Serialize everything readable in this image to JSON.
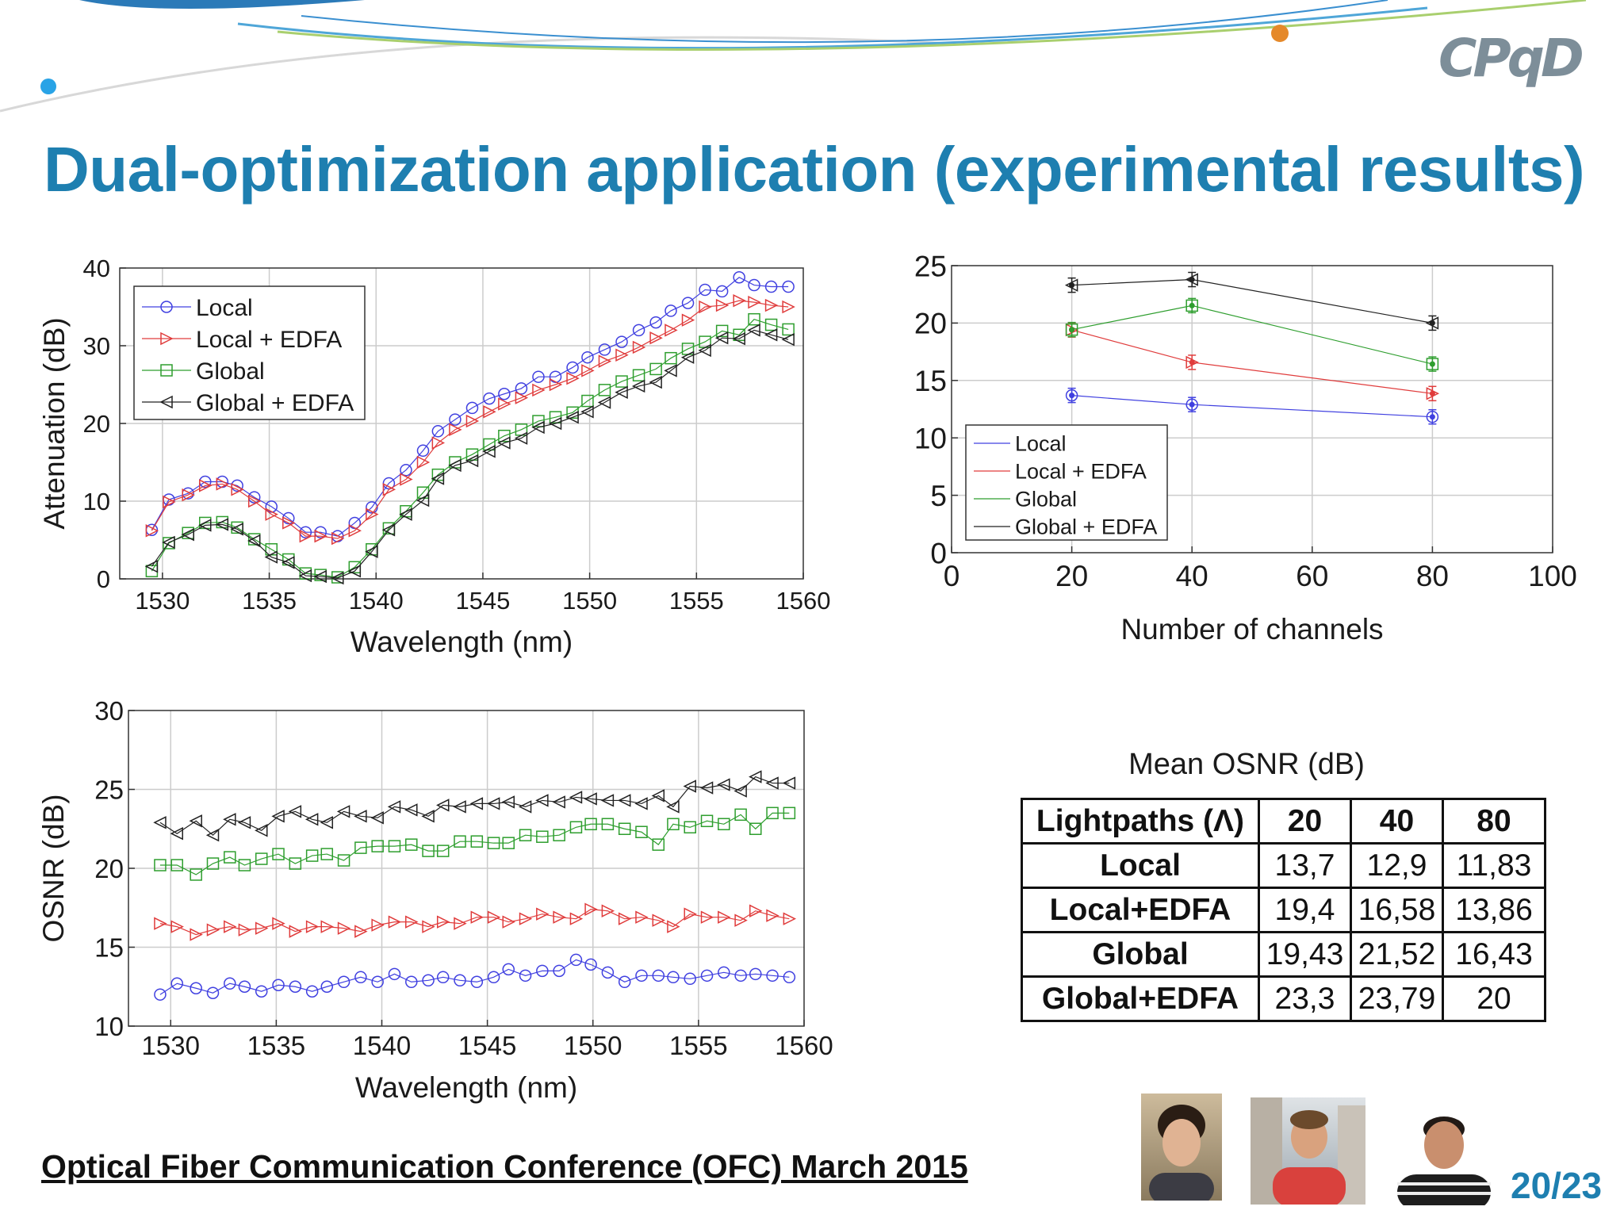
{
  "slide": {
    "title": "Dual-optimization application (experimental results)",
    "footer": "Optical Fiber Communication Conference (OFC) March 2015",
    "page_number": "20/23",
    "logo": "CPqD",
    "colors": {
      "title": "#1e7fb0",
      "local": "#4040e0",
      "local_edfa": "#e03c3c",
      "global": "#2e9e2e",
      "global_edfa": "#222222"
    }
  },
  "table": {
    "caption": "Mean OSNR (dB)",
    "header": [
      "Lightpaths (Λ)",
      "20",
      "40",
      "80"
    ],
    "rows": [
      [
        "Local",
        "13,7",
        "12,9",
        "11,83"
      ],
      [
        "Local+EDFA",
        "19,4",
        "16,58",
        "13,86"
      ],
      [
        "Global",
        "19,43",
        "21,52",
        "16,43"
      ],
      [
        "Global+EDFA",
        "23,3",
        "23,79",
        "20"
      ]
    ]
  },
  "chart_data": [
    {
      "id": "attenuation",
      "type": "line",
      "xlabel": "Wavelength (nm)",
      "ylabel": "Attenuation (dB)",
      "xlim": [
        1528,
        1560
      ],
      "ylim": [
        0,
        40
      ],
      "xticks": [
        1530,
        1535,
        1540,
        1545,
        1550,
        1555,
        1560
      ],
      "yticks": [
        0,
        10,
        20,
        30,
        40
      ],
      "grid": true,
      "legend": "top-left",
      "x": [
        1529.5,
        1530.3,
        1531.2,
        1532,
        1532.8,
        1533.5,
        1534.3,
        1535.1,
        1535.9,
        1536.7,
        1537.4,
        1538.2,
        1539,
        1539.8,
        1540.6,
        1541.4,
        1542.2,
        1542.9,
        1543.7,
        1544.5,
        1545.3,
        1546,
        1546.8,
        1547.6,
        1548.4,
        1549.2,
        1549.9,
        1550.7,
        1551.5,
        1552.3,
        1553.1,
        1553.8,
        1554.6,
        1555.4,
        1556.2,
        1557,
        1557.7,
        1558.5,
        1559.3
      ],
      "series": [
        {
          "name": "Local",
          "marker": "circle",
          "color": "#4040e0",
          "values": [
            6.3,
            10.2,
            11,
            12.5,
            12.5,
            12,
            10.5,
            9.3,
            7.8,
            6,
            6,
            5.5,
            7.2,
            9.2,
            12.3,
            14,
            16.5,
            19,
            20.5,
            22,
            23.2,
            23.8,
            24.5,
            26,
            26,
            27.2,
            28.5,
            29.5,
            30.5,
            32,
            33,
            34.5,
            35.5,
            37.2,
            37,
            38.8,
            37.8,
            37.6,
            37.6
          ]
        },
        {
          "name": "Local + EDFA",
          "marker": "triangle-right",
          "color": "#e03c3c",
          "values": [
            6.2,
            9.9,
            10.8,
            12,
            12.2,
            11.5,
            10,
            8.3,
            7.2,
            5.5,
            5.5,
            5.2,
            6.2,
            8.3,
            11.5,
            12.8,
            15,
            17.5,
            19.2,
            20.3,
            21.5,
            22.5,
            23.3,
            24.3,
            25,
            25.8,
            26.8,
            28,
            28.8,
            29.8,
            31,
            32,
            33.3,
            35,
            35.2,
            35.8,
            35.6,
            35.2,
            35
          ]
        },
        {
          "name": "Global",
          "marker": "square",
          "color": "#2e9e2e",
          "values": [
            1,
            4.6,
            5.9,
            7.2,
            7.3,
            6.6,
            5.1,
            3.8,
            2.5,
            0.7,
            0.5,
            0.2,
            1.5,
            3.8,
            6.5,
            8.7,
            11.1,
            13.4,
            15,
            16,
            17.3,
            18.4,
            19.2,
            20.3,
            20.8,
            21.4,
            22.9,
            24.3,
            25.4,
            26.2,
            27,
            28.4,
            29.6,
            30.5,
            31.9,
            31.4,
            33.4,
            32.7,
            32.1
          ]
        },
        {
          "name": "Global + EDFA",
          "marker": "triangle-left",
          "color": "#222222",
          "values": [
            1.6,
            4.7,
            5.7,
            6.9,
            7,
            6.4,
            4.9,
            2.8,
            2.1,
            0.4,
            0.3,
            0.1,
            1,
            3.5,
            6.3,
            8.3,
            10.1,
            12.9,
            14.6,
            15.2,
            16.4,
            17.5,
            18.1,
            19.5,
            20,
            20.8,
            21.5,
            22.7,
            24,
            24.8,
            25.3,
            26.8,
            28.5,
            29.4,
            31,
            30.9,
            32,
            31.4,
            30.8
          ]
        }
      ]
    },
    {
      "id": "osnr-vs-channels",
      "type": "line",
      "xlabel": "Number of channels",
      "ylabel": "",
      "xlim": [
        0,
        100
      ],
      "ylim": [
        0,
        25
      ],
      "xticks": [
        0,
        20,
        40,
        60,
        80,
        100
      ],
      "yticks": [
        0,
        5,
        10,
        15,
        20,
        25
      ],
      "grid": true,
      "legend": "bottom-left",
      "x": [
        20,
        40,
        80
      ],
      "series": [
        {
          "name": "Local",
          "marker": "circle",
          "color": "#4040e0",
          "values": [
            13.7,
            12.9,
            11.83
          ]
        },
        {
          "name": "Local + EDFA",
          "marker": "triangle-right",
          "color": "#e03c3c",
          "values": [
            19.4,
            16.58,
            13.86
          ]
        },
        {
          "name": "Global",
          "marker": "square",
          "color": "#2e9e2e",
          "values": [
            19.43,
            21.52,
            16.43
          ]
        },
        {
          "name": "Global + EDFA",
          "marker": "triangle-left",
          "color": "#222222",
          "values": [
            23.3,
            23.79,
            20
          ]
        }
      ]
    },
    {
      "id": "osnr-vs-wavelength",
      "type": "line",
      "xlabel": "Wavelength (nm)",
      "ylabel": "OSNR (dB)",
      "xlim": [
        1528,
        1560
      ],
      "ylim": [
        10,
        30
      ],
      "xticks": [
        1530,
        1535,
        1540,
        1545,
        1550,
        1555,
        1560
      ],
      "yticks": [
        10,
        15,
        20,
        25,
        30
      ],
      "grid": true,
      "legend": "none",
      "x": [
        1529.5,
        1530.3,
        1531.2,
        1532,
        1532.8,
        1533.5,
        1534.3,
        1535.1,
        1535.9,
        1536.7,
        1537.4,
        1538.2,
        1539,
        1539.8,
        1540.6,
        1541.4,
        1542.2,
        1542.9,
        1543.7,
        1544.5,
        1545.3,
        1546,
        1546.8,
        1547.6,
        1548.4,
        1549.2,
        1549.9,
        1550.7,
        1551.5,
        1552.3,
        1553.1,
        1553.8,
        1554.6,
        1555.4,
        1556.2,
        1557,
        1557.7,
        1558.5,
        1559.3
      ],
      "series": [
        {
          "name": "Local",
          "marker": "circle",
          "color": "#4040e0",
          "values": [
            12,
            12.7,
            12.4,
            12.1,
            12.7,
            12.5,
            12.2,
            12.6,
            12.5,
            12.2,
            12.5,
            12.8,
            13.1,
            12.8,
            13.3,
            12.8,
            12.9,
            13.1,
            12.9,
            12.8,
            13.1,
            13.6,
            13.2,
            13.5,
            13.5,
            14.2,
            13.9,
            13.4,
            12.8,
            13.2,
            13.2,
            13.1,
            13,
            13.2,
            13.4,
            13.2,
            13.3,
            13.2,
            13.1
          ]
        },
        {
          "name": "Local + EDFA",
          "marker": "triangle-right",
          "color": "#e03c3c",
          "values": [
            16.5,
            16.3,
            15.8,
            16.1,
            16.3,
            16.1,
            16.2,
            16.5,
            16,
            16.3,
            16.3,
            16.2,
            16,
            16.4,
            16.6,
            16.6,
            16.3,
            16.6,
            16.5,
            16.9,
            16.9,
            16.6,
            16.8,
            17.1,
            16.9,
            16.8,
            17.4,
            17.3,
            16.8,
            16.9,
            16.7,
            16.3,
            17.1,
            16.9,
            16.9,
            16.7,
            17.3,
            17,
            16.8
          ]
        },
        {
          "name": "Global",
          "marker": "square",
          "color": "#2e9e2e",
          "values": [
            20.2,
            20.2,
            19.6,
            20.3,
            20.7,
            20.2,
            20.6,
            20.9,
            20.3,
            20.8,
            20.9,
            20.5,
            21.3,
            21.4,
            21.4,
            21.5,
            21.1,
            21.1,
            21.7,
            21.7,
            21.6,
            21.6,
            22.1,
            22,
            22.1,
            22.6,
            22.8,
            22.8,
            22.5,
            22.3,
            21.5,
            22.8,
            22.6,
            23,
            22.8,
            23.4,
            22.5,
            23.5,
            23.5
          ]
        },
        {
          "name": "Global + EDFA",
          "marker": "triangle-left",
          "color": "#222222",
          "values": [
            22.9,
            22.2,
            23,
            22.1,
            23.1,
            22.9,
            22.4,
            23.3,
            23.6,
            23.1,
            22.9,
            23.6,
            23.3,
            23.2,
            23.9,
            23.7,
            23.3,
            24,
            23.9,
            24.1,
            24.1,
            24.2,
            23.9,
            24.3,
            24.2,
            24.5,
            24.4,
            24.3,
            24.3,
            24.1,
            24.6,
            23.9,
            25.2,
            25.1,
            25.3,
            24.9,
            25.8,
            25.4,
            25.4
          ]
        }
      ]
    }
  ]
}
